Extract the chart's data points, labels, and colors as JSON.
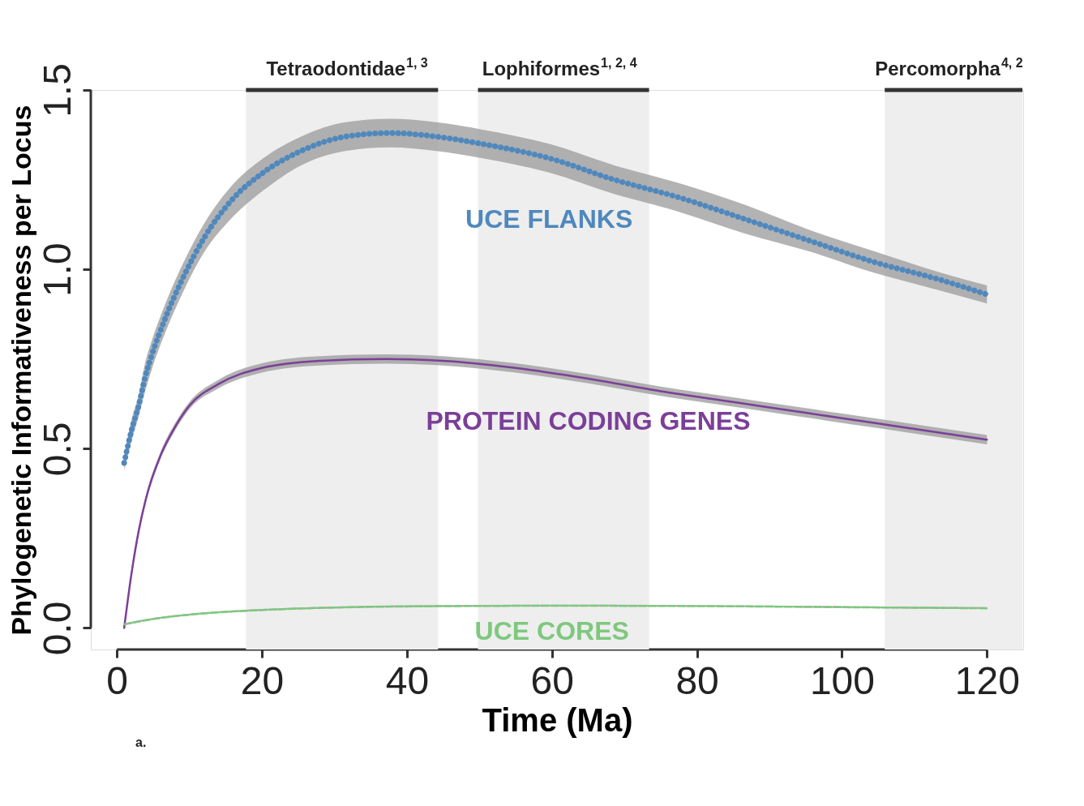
{
  "chart_data": {
    "type": "line",
    "xlabel": "Time (Ma)",
    "ylabel": "Phylogenetic Informativeness per Locus",
    "xlim": [
      -3.6,
      125
    ],
    "ylim": [
      -0.06,
      1.5
    ],
    "xticks": [
      0,
      20,
      40,
      60,
      80,
      100,
      120
    ],
    "yticks": [
      {
        "value": 0,
        "label": "0.0"
      },
      {
        "value": 0.5,
        "label": "0.5"
      },
      {
        "value": 1,
        "label": "1.0"
      },
      {
        "value": 1.5,
        "label": "1.5"
      }
    ],
    "grid": false,
    "legend": false,
    "marker": "none",
    "bands": [
      {
        "axis": "x",
        "from": 17.8,
        "to": 44.3,
        "label": "Tetraodontidae$^{1, 3}$",
        "color": "#eeeeee"
      },
      {
        "axis": "x",
        "from": 49.8,
        "to": 73.4,
        "label": "Lophiformes$^{1, 2, 4}$",
        "color": "#eeeeee"
      },
      {
        "axis": "x",
        "from": 105.9,
        "to": 124.9,
        "label": "Percomorpha$^{4, 2}$",
        "color": "#eeeeee"
      }
    ],
    "series": [
      {
        "name": "UCE FLANKS",
        "color": "#4f88bd",
        "line_style": "dotted",
        "x": [
          1,
          2,
          3,
          3.9,
          4.8,
          6.8,
          9.2,
          12.1,
          15.7,
          20.2,
          25.4,
          31.5,
          37.7,
          44.1,
          50.3,
          59.6,
          68.6,
          77.6,
          86.6,
          95.5,
          104.5,
          113.7,
          120
        ],
        "values": [
          0.46,
          0.55,
          0.62,
          0.7,
          0.76,
          0.87,
          0.98,
          1.09,
          1.19,
          1.27,
          1.33,
          1.37,
          1.38,
          1.37,
          1.35,
          1.31,
          1.25,
          1.2,
          1.14,
          1.08,
          1.02,
          0.97,
          0.93
        ],
        "lower": [
          0.44,
          0.52,
          0.59,
          0.66,
          0.72,
          0.83,
          0.94,
          1.05,
          1.14,
          1.22,
          1.29,
          1.33,
          1.34,
          1.33,
          1.31,
          1.27,
          1.21,
          1.16,
          1.1,
          1.05,
          0.99,
          0.94,
          0.905
        ],
        "upper": [
          0.48,
          0.58,
          0.65,
          0.74,
          0.8,
          0.91,
          1.02,
          1.13,
          1.23,
          1.31,
          1.37,
          1.41,
          1.42,
          1.41,
          1.39,
          1.35,
          1.29,
          1.24,
          1.18,
          1.11,
          1.05,
          0.99,
          0.955
        ]
      },
      {
        "name": "PROTEIN CODING GENES",
        "color": "#7b3f98",
        "line_style": "solid",
        "x": [
          1,
          2,
          3,
          4,
          6,
          8,
          10,
          14,
          20,
          28,
          37,
          45,
          55,
          65,
          75,
          85,
          95,
          105,
          120
        ],
        "values": [
          0,
          0.15,
          0.27,
          0.36,
          0.48,
          0.56,
          0.62,
          0.68,
          0.725,
          0.745,
          0.75,
          0.745,
          0.725,
          0.695,
          0.66,
          0.63,
          0.6,
          0.57,
          0.525
        ],
        "lower": [
          0,
          0.14,
          0.26,
          0.35,
          0.47,
          0.55,
          0.61,
          0.668,
          0.712,
          0.732,
          0.737,
          0.732,
          0.712,
          0.682,
          0.647,
          0.617,
          0.587,
          0.557,
          0.512
        ],
        "upper": [
          0,
          0.16,
          0.28,
          0.37,
          0.49,
          0.57,
          0.63,
          0.692,
          0.738,
          0.758,
          0.763,
          0.758,
          0.738,
          0.708,
          0.673,
          0.643,
          0.613,
          0.583,
          0.538
        ]
      },
      {
        "name": "UCE CORES",
        "color": "#7ec87e",
        "line_style": "dashed",
        "x": [
          1,
          5,
          10,
          20,
          30,
          40,
          60,
          80,
          100,
          120
        ],
        "values": [
          0.01,
          0.025,
          0.037,
          0.05,
          0.057,
          0.06,
          0.062,
          0.061,
          0.058,
          0.055
        ],
        "lower": [
          0.008,
          0.023,
          0.035,
          0.048,
          0.055,
          0.058,
          0.06,
          0.059,
          0.056,
          0.053
        ],
        "upper": [
          0.013,
          0.028,
          0.04,
          0.053,
          0.06,
          0.063,
          0.065,
          0.064,
          0.061,
          0.058
        ]
      }
    ],
    "annotations": [
      "a."
    ]
  }
}
